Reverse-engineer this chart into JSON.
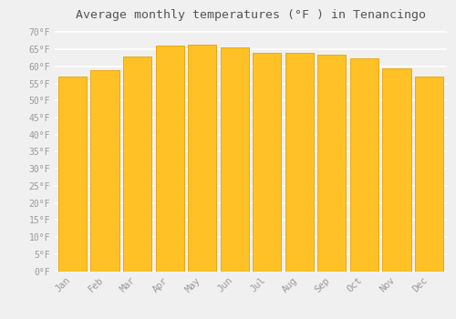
{
  "months": [
    "Jan",
    "Feb",
    "Mar",
    "Apr",
    "May",
    "Jun",
    "Jul",
    "Aug",
    "Sep",
    "Oct",
    "Nov",
    "Dec"
  ],
  "values": [
    57,
    59,
    63,
    66,
    66.5,
    65.5,
    64,
    64,
    63.5,
    62.5,
    59.5,
    57
  ],
  "bar_color": "#FFC125",
  "bar_edge_color": "#E8A000",
  "title": "Average monthly temperatures (°F ) in Tenancingo",
  "title_fontsize": 9.5,
  "ylabel_ticks": [
    0,
    5,
    10,
    15,
    20,
    25,
    30,
    35,
    40,
    45,
    50,
    55,
    60,
    65,
    70
  ],
  "ylim": [
    0,
    72
  ],
  "background_color": "#f0f0f0",
  "grid_color": "#ffffff",
  "tick_label_color": "#999999",
  "title_color": "#555555",
  "font_family": "monospace",
  "bar_width": 0.88
}
